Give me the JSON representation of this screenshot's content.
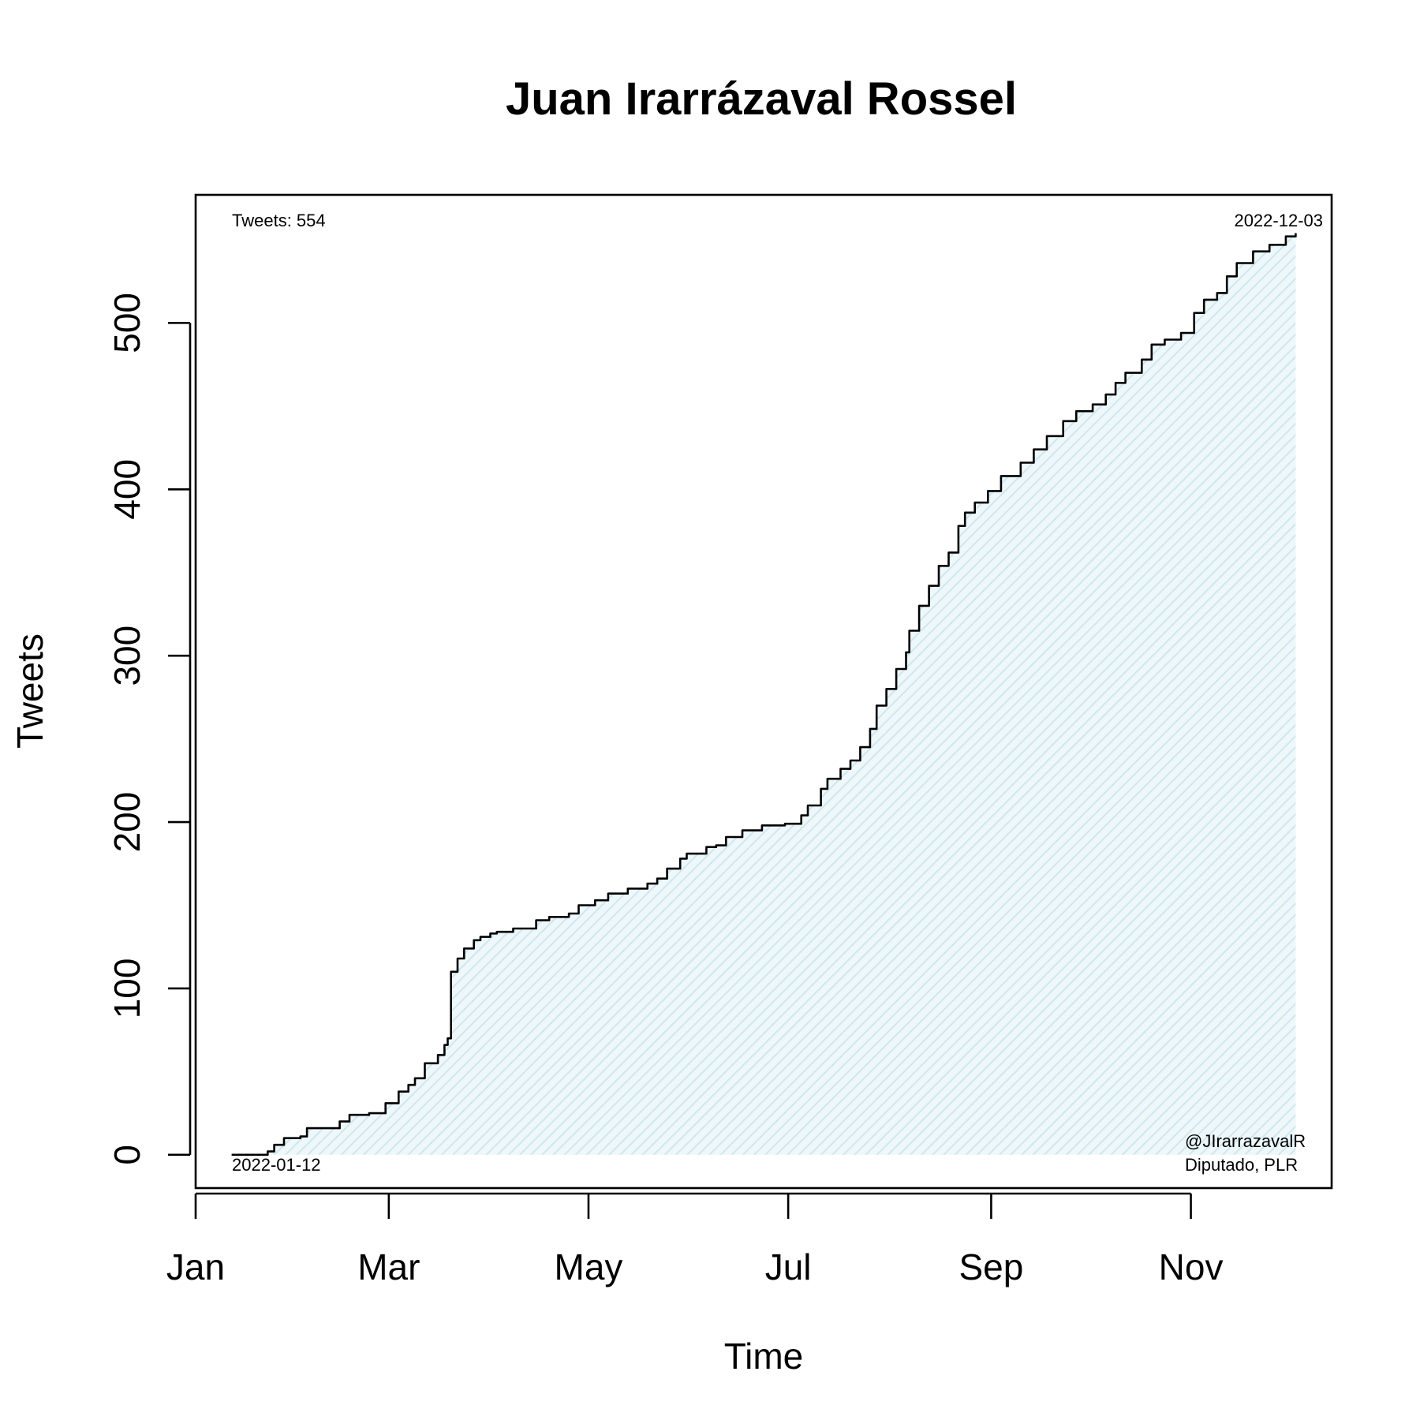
{
  "chart_data": {
    "type": "line",
    "title": "Juan Irarrázaval Rossel",
    "xlabel": "Time",
    "ylabel": "Tweets",
    "x_ticks": [
      {
        "label": "Jan",
        "date": "2022-01-01"
      },
      {
        "label": "Mar",
        "date": "2022-03-01"
      },
      {
        "label": "May",
        "date": "2022-05-01"
      },
      {
        "label": "Jul",
        "date": "2022-07-01"
      },
      {
        "label": "Sep",
        "date": "2022-09-01"
      },
      {
        "label": "Nov",
        "date": "2022-11-01"
      }
    ],
    "y_ticks": [
      0,
      100,
      200,
      300,
      400,
      500
    ],
    "xlim": [
      "2022-01-01",
      "2022-12-14"
    ],
    "ylim": [
      -20,
      577
    ],
    "fill": "light blue hatched area under curve",
    "line_color": "#000000",
    "fill_color": "#d6ecf2",
    "series": [
      {
        "x": [
          "2022-01-12",
          "2022-01-23",
          "2022-01-25",
          "2022-01-28",
          "2022-02-02",
          "2022-02-04",
          "2022-02-14",
          "2022-02-17",
          "2022-02-23",
          "2022-02-28",
          "2022-03-04",
          "2022-03-07",
          "2022-03-09",
          "2022-03-12",
          "2022-03-16",
          "2022-03-18",
          "2022-03-19",
          "2022-03-20",
          "2022-03-22",
          "2022-03-24",
          "2022-03-27",
          "2022-03-29",
          "2022-04-01",
          "2022-04-03",
          "2022-04-08",
          "2022-04-15",
          "2022-04-19",
          "2022-04-25",
          "2022-04-28",
          "2022-05-03",
          "2022-05-07",
          "2022-05-13",
          "2022-05-19",
          "2022-05-22",
          "2022-05-25",
          "2022-05-29",
          "2022-05-31",
          "2022-06-06",
          "2022-06-09",
          "2022-06-12",
          "2022-06-17",
          "2022-06-23",
          "2022-06-30",
          "2022-07-05",
          "2022-07-07",
          "2022-07-11",
          "2022-07-13",
          "2022-07-17",
          "2022-07-20",
          "2022-07-23",
          "2022-07-26",
          "2022-07-28",
          "2022-07-31",
          "2022-08-03",
          "2022-08-06",
          "2022-08-07",
          "2022-08-10",
          "2022-08-13",
          "2022-08-16",
          "2022-08-19",
          "2022-08-22",
          "2022-08-24",
          "2022-08-27",
          "2022-08-31",
          "2022-09-04",
          "2022-09-10",
          "2022-09-14",
          "2022-09-18",
          "2022-09-23",
          "2022-09-27",
          "2022-10-02",
          "2022-10-06",
          "2022-10-09",
          "2022-10-12",
          "2022-10-17",
          "2022-10-20",
          "2022-10-24",
          "2022-10-29",
          "2022-11-02",
          "2022-11-05",
          "2022-11-09",
          "2022-11-12",
          "2022-11-15",
          "2022-11-20",
          "2022-11-25",
          "2022-11-30",
          "2022-12-03"
        ],
        "y": [
          0,
          2,
          6,
          10,
          11,
          16,
          20,
          24,
          25,
          31,
          38,
          42,
          46,
          55,
          60,
          66,
          70,
          110,
          118,
          124,
          129,
          131,
          133,
          134,
          136,
          141,
          143,
          145,
          150,
          153,
          157,
          160,
          163,
          166,
          172,
          178,
          181,
          185,
          186,
          191,
          195,
          198,
          199,
          204,
          210,
          220,
          226,
          232,
          237,
          245,
          256,
          270,
          280,
          292,
          302,
          315,
          330,
          342,
          354,
          362,
          378,
          386,
          392,
          399,
          408,
          416,
          424,
          432,
          441,
          447,
          451,
          457,
          464,
          470,
          478,
          487,
          490,
          494,
          506,
          514,
          518,
          528,
          536,
          543,
          547,
          552,
          554
        ]
      }
    ],
    "annotations": {
      "count": "Tweets: 554",
      "end_date": "2022-12-03",
      "start_date": "2022-01-12",
      "handle": "@JIrarrazavalR",
      "role": "Diputado, PLR"
    }
  }
}
